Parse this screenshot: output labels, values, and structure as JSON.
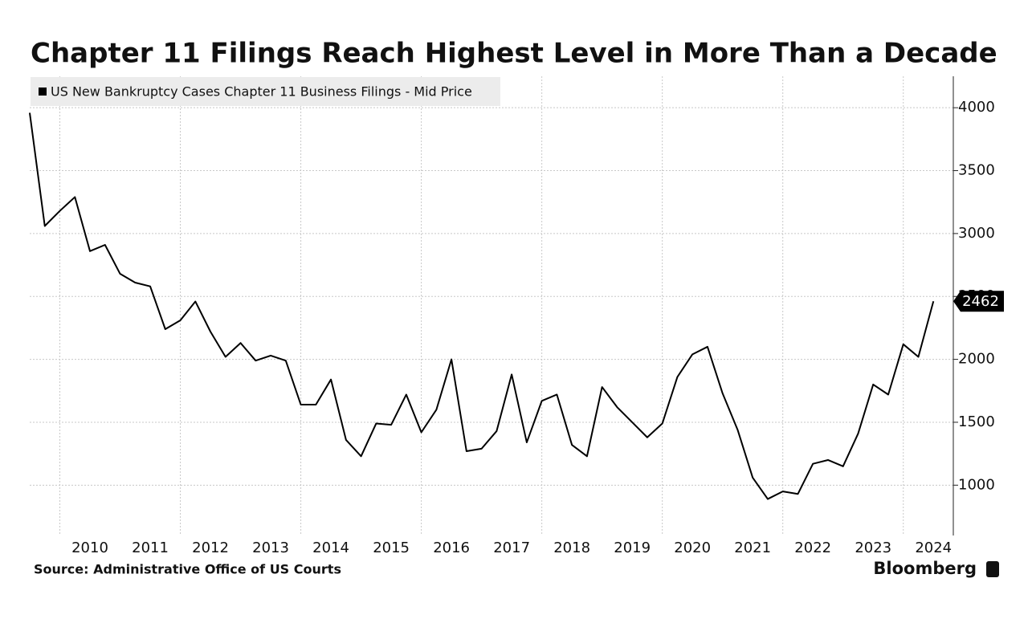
{
  "chart_data": {
    "type": "line",
    "title": "Chapter 11 Filings Reach Highest Level in More Than a Decade",
    "source": "Source: Administrative Office of US Courts",
    "brand": "Bloomberg",
    "x": [
      2009.5,
      2009.75,
      2010,
      2010.25,
      2010.5,
      2010.75,
      2011,
      2011.25,
      2011.5,
      2011.75,
      2012,
      2012.25,
      2012.5,
      2012.75,
      2013,
      2013.25,
      2013.5,
      2013.75,
      2014,
      2014.25,
      2014.5,
      2014.75,
      2015,
      2015.25,
      2015.5,
      2015.75,
      2016,
      2016.25,
      2016.5,
      2016.75,
      2017,
      2017.25,
      2017.5,
      2017.75,
      2018,
      2018.25,
      2018.5,
      2018.75,
      2019,
      2019.25,
      2019.5,
      2019.75,
      2020,
      2020.25,
      2020.5,
      2020.75,
      2021,
      2021.25,
      2021.5,
      2021.75,
      2022,
      2022.25,
      2022.5,
      2022.75,
      2023,
      2023.25,
      2023.5,
      2023.75,
      2024,
      2024.25,
      2024.5
    ],
    "series": [
      {
        "name": "US New Bankruptcy Cases Chapter 11 Business Filings - Mid Price",
        "color": "#000000",
        "values": [
          3960,
          3060,
          3180,
          3290,
          2860,
          2910,
          2680,
          2610,
          2580,
          2240,
          2310,
          2460,
          2220,
          2020,
          2130,
          1990,
          2030,
          1990,
          1640,
          1640,
          1840,
          1360,
          1230,
          1490,
          1480,
          1720,
          1420,
          1600,
          2000,
          1270,
          1290,
          1430,
          1880,
          1340,
          1670,
          1720,
          1320,
          1230,
          1780,
          1620,
          1500,
          1380,
          1490,
          1860,
          2040,
          2100,
          1730,
          1440,
          1060,
          890,
          950,
          930,
          1170,
          1200,
          1150,
          1410,
          1800,
          1720,
          2120,
          2020,
          2462
        ]
      }
    ],
    "xlim": [
      2009.5,
      2024.83
    ],
    "xticks": [
      {
        "value": 2010.5,
        "label": "2010"
      },
      {
        "value": 2011.5,
        "label": "2011"
      },
      {
        "value": 2012.5,
        "label": "2012"
      },
      {
        "value": 2013.5,
        "label": "2013"
      },
      {
        "value": 2014.5,
        "label": "2014"
      },
      {
        "value": 2015.5,
        "label": "2015"
      },
      {
        "value": 2016.5,
        "label": "2016"
      },
      {
        "value": 2017.5,
        "label": "2017"
      },
      {
        "value": 2018.5,
        "label": "2018"
      },
      {
        "value": 2019.5,
        "label": "2019"
      },
      {
        "value": 2020.5,
        "label": "2020"
      },
      {
        "value": 2021.5,
        "label": "2021"
      },
      {
        "value": 2022.5,
        "label": "2022"
      },
      {
        "value": 2023.5,
        "label": "2023"
      },
      {
        "value": 2024.5,
        "label": "2024"
      }
    ],
    "ylim": [
      600,
      4250
    ],
    "yticks": [
      1000,
      1500,
      2000,
      2500,
      3000,
      3500,
      4000
    ],
    "grid": true
  }
}
